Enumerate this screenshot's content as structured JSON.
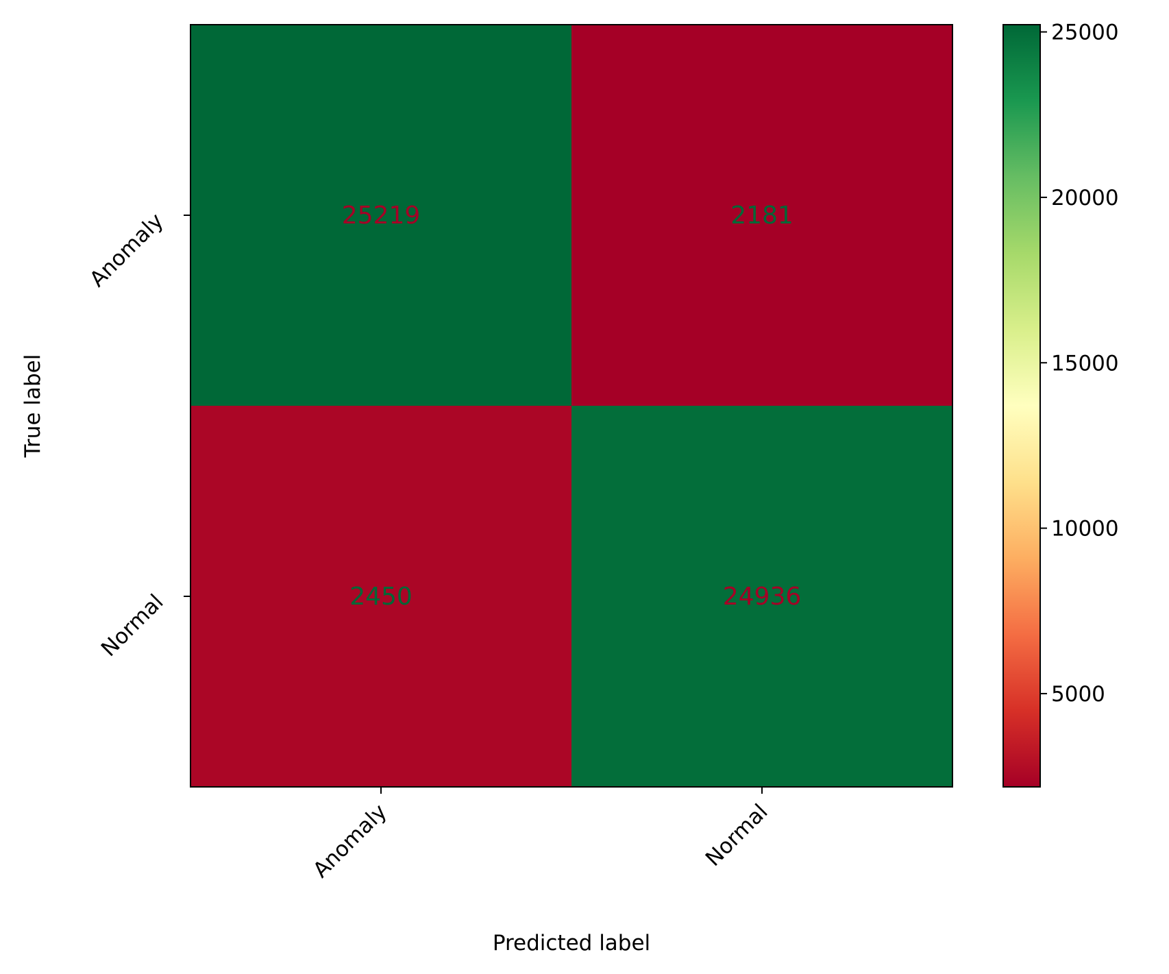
{
  "chart_data": {
    "type": "heatmap",
    "title": "",
    "xlabel": "Predicted label",
    "ylabel": "True label",
    "x_categories": [
      "Anomaly",
      "Normal"
    ],
    "y_categories": [
      "Anomaly",
      "Normal"
    ],
    "values": [
      [
        25219,
        2181
      ],
      [
        2450,
        24936
      ]
    ],
    "colormap": "RdYlGn",
    "colorbar": {
      "range": [
        2181,
        25219
      ],
      "ticks": [
        5000,
        10000,
        15000,
        20000,
        25000
      ],
      "tick_labels": [
        "5000",
        "10000",
        "15000",
        "20000",
        "25000"
      ],
      "stops": [
        "#a50026",
        "#d73027",
        "#f46d43",
        "#fdae61",
        "#fee08b",
        "#ffffbf",
        "#d9ef8b",
        "#a6d96a",
        "#66bd63",
        "#1a9850",
        "#006837"
      ]
    },
    "grid": false
  }
}
